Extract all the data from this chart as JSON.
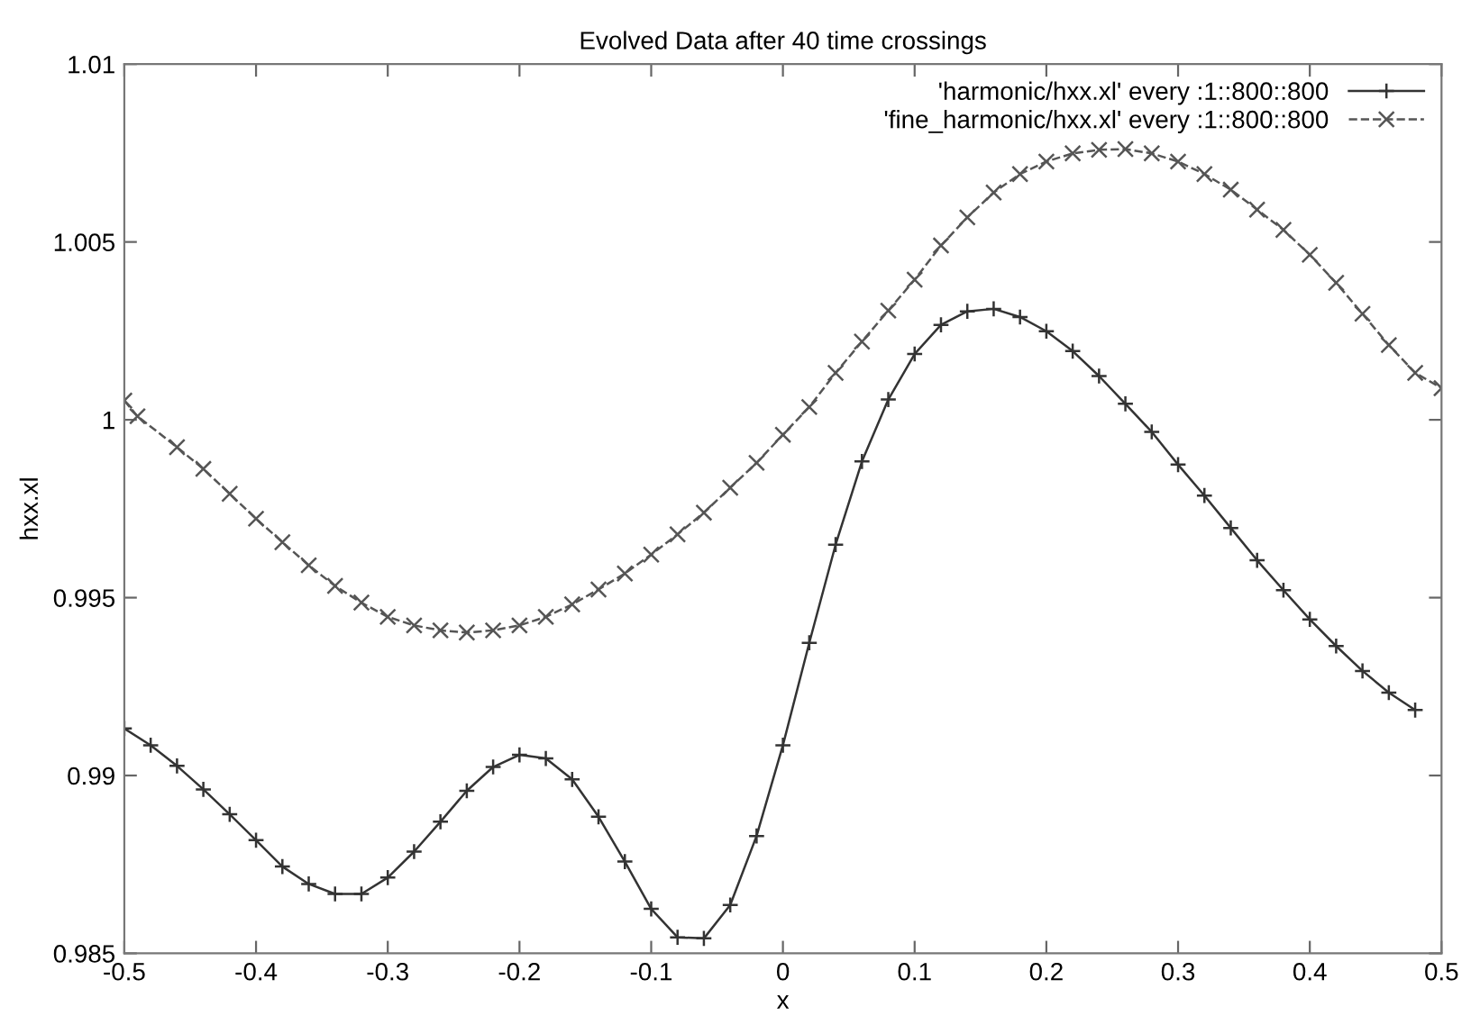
{
  "chart_data": {
    "type": "line",
    "title": "Evolved Data after 40 time crossings",
    "xlabel": "x",
    "ylabel": "hxx.xl",
    "xlim": [
      -0.5,
      0.5
    ],
    "xticks": [
      -0.5,
      -0.4,
      -0.3,
      -0.2,
      -0.1,
      0,
      0.1,
      0.2,
      0.3,
      0.4,
      0.5
    ],
    "ylim": [
      0.985,
      1.01
    ],
    "yticks": [
      0.985,
      0.99,
      0.995,
      1,
      1.005,
      1.01
    ],
    "grid": false,
    "legend": "top right",
    "series": [
      {
        "name": "'harmonic/hxx.xl' every :1::800::800",
        "color": "#333333",
        "marker": "cross",
        "line_style": "solid",
        "x": [
          -0.5,
          -0.48,
          -0.46,
          -0.44,
          -0.42,
          -0.4,
          -0.38,
          -0.36,
          -0.34,
          -0.32,
          -0.3,
          -0.28,
          -0.26,
          -0.24,
          -0.22,
          -0.2,
          -0.18,
          -0.16,
          -0.14,
          -0.12,
          -0.1,
          -0.08,
          -0.06,
          -0.04,
          -0.02,
          0,
          0.02,
          0.04,
          0.06,
          0.08,
          0.1,
          0.12,
          0.14,
          0.16,
          0.18,
          0.2,
          0.22,
          0.24,
          0.26,
          0.28,
          0.3,
          0.32,
          0.34,
          0.36,
          0.38,
          0.4,
          0.42,
          0.44,
          0.46,
          0.48
        ],
        "values": [
          0.99132,
          0.99085,
          0.99027,
          0.98961,
          0.98891,
          0.98818,
          0.98744,
          0.98695,
          0.98667,
          0.98667,
          0.98713,
          0.98786,
          0.9887,
          0.98957,
          0.99024,
          0.99058,
          0.99048,
          0.98989,
          0.98884,
          0.98758,
          0.98625,
          0.98545,
          0.98542,
          0.98636,
          0.9883,
          0.99085,
          0.99373,
          0.99649,
          0.99883,
          1.00057,
          1.00185,
          1.00267,
          1.00305,
          1.00312,
          1.00289,
          1.00249,
          1.00193,
          1.00123,
          1.00045,
          0.99966,
          0.99874,
          0.99787,
          0.99696,
          0.99605,
          0.99521,
          0.99439,
          0.99364,
          0.99294,
          0.99233,
          0.99184
        ]
      },
      {
        "name": "'fine_harmonic/hxx.xl' every :1::800::800",
        "color": "#555555",
        "marker": "cross",
        "line_style": "dashed",
        "x": [
          -0.5,
          -0.49,
          -0.46,
          -0.44,
          -0.42,
          -0.4,
          -0.38,
          -0.36,
          -0.34,
          -0.32,
          -0.3,
          -0.28,
          -0.26,
          -0.24,
          -0.22,
          -0.2,
          -0.18,
          -0.16,
          -0.14,
          -0.12,
          -0.1,
          -0.08,
          -0.06,
          -0.04,
          -0.02,
          0,
          0.02,
          0.04,
          0.06,
          0.08,
          0.1,
          0.12,
          0.14,
          0.16,
          0.18,
          0.2,
          0.22,
          0.24,
          0.26,
          0.28,
          0.3,
          0.32,
          0.34,
          0.36,
          0.38,
          0.4,
          0.42,
          0.44,
          0.46,
          0.48,
          0.5
        ],
        "values": [
          1.00054,
          1.0001,
          0.99923,
          0.99862,
          0.99792,
          0.99722,
          0.99656,
          0.99591,
          0.99533,
          0.99486,
          0.99446,
          0.99422,
          0.99408,
          0.99402,
          0.99408,
          0.99422,
          0.99446,
          0.99481,
          0.99523,
          0.99568,
          0.99621,
          0.99678,
          0.99739,
          0.99809,
          0.99879,
          0.99958,
          1.00036,
          1.00132,
          1.0022,
          1.00307,
          1.00394,
          1.0049,
          1.00569,
          1.00639,
          1.00691,
          1.00726,
          1.00749,
          1.00759,
          1.00761,
          1.00749,
          1.00726,
          1.00691,
          1.00647,
          1.00591,
          1.00534,
          1.00464,
          1.00385,
          1.00298,
          1.0021,
          1.00132,
          1.00089
        ]
      }
    ]
  }
}
